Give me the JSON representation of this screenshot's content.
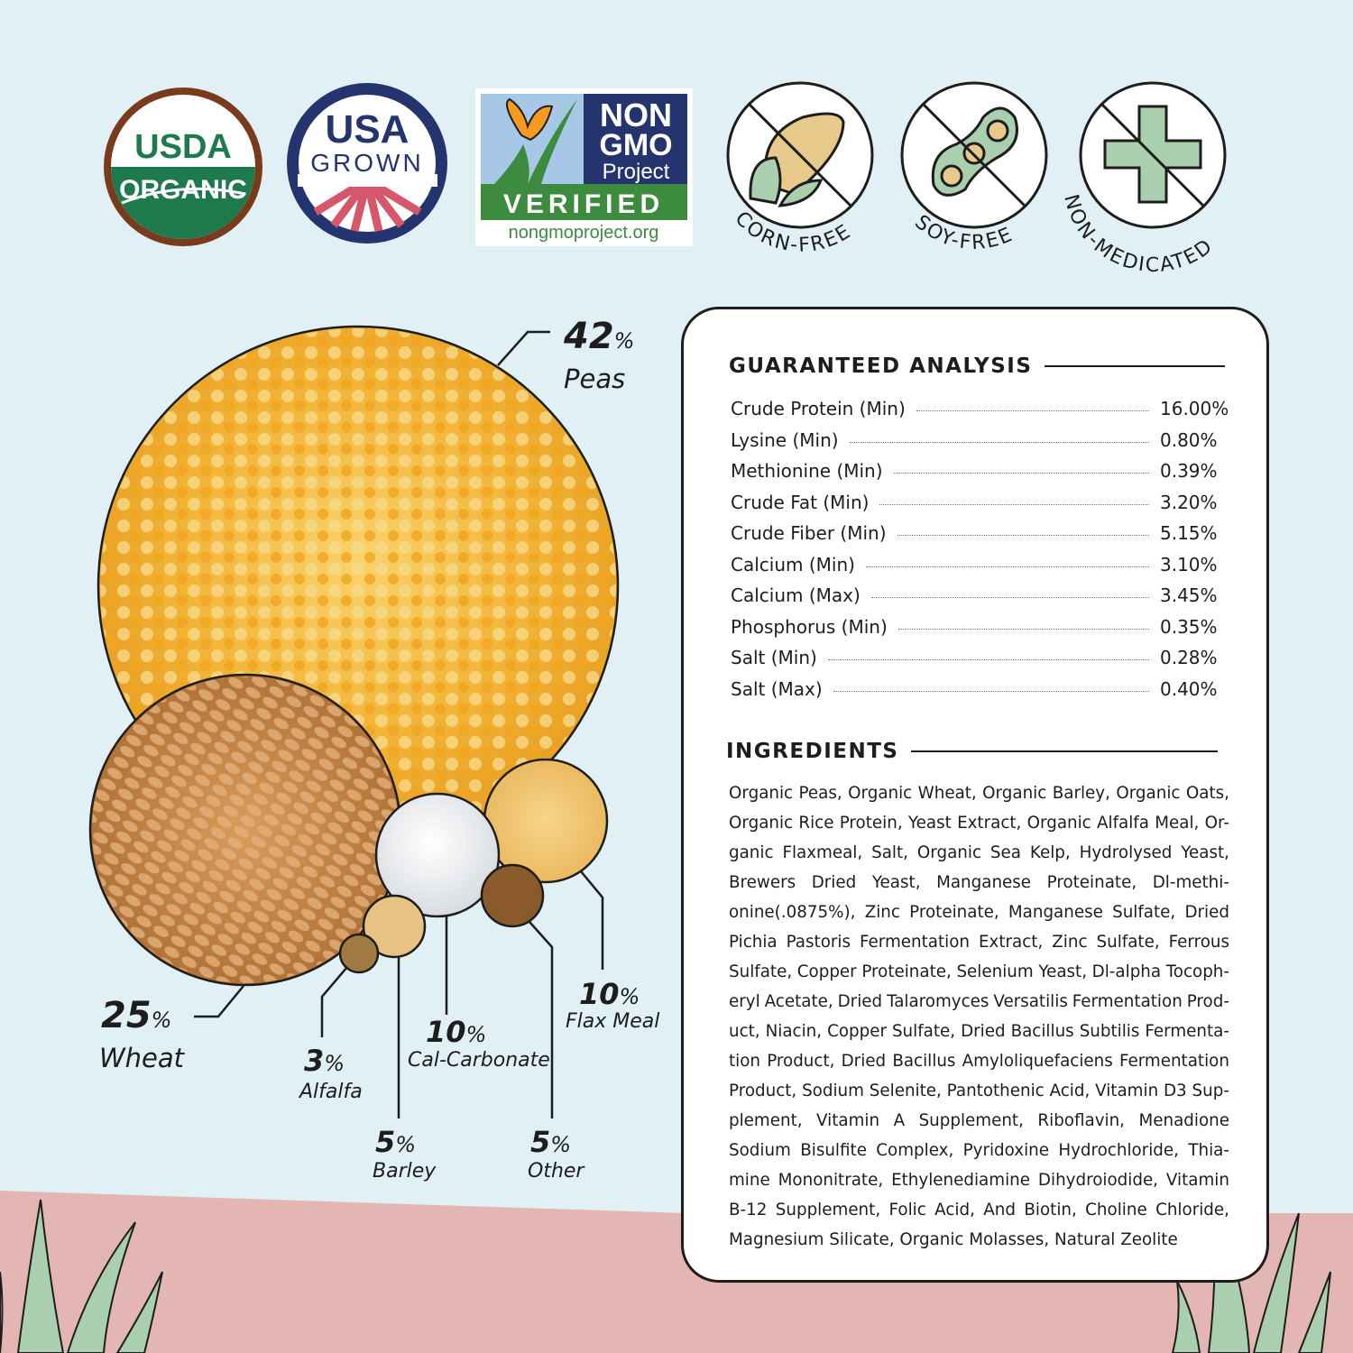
{
  "badges": {
    "usda": {
      "line1": "USDA",
      "line2": "ORGANIC"
    },
    "usa_grown": {
      "line1": "USA",
      "line2": "GROWN"
    },
    "non_gmo": {
      "line1": "NON",
      "line2": "GMO",
      "line3": "Project",
      "verified": "VERIFIED",
      "url": "nongmoproject.org"
    },
    "corn_free": "CORN-FREE",
    "soy_free": "SOY-FREE",
    "non_medicated": "NON-MEDICATED"
  },
  "composition": [
    {
      "pct": "42",
      "unit": "%",
      "name": "Peas"
    },
    {
      "pct": "25",
      "unit": "%",
      "name": "Wheat"
    },
    {
      "pct": "3",
      "unit": "%",
      "name": "Alfalfa"
    },
    {
      "pct": "5",
      "unit": "%",
      "name": "Barley"
    },
    {
      "pct": "10",
      "unit": "%",
      "name": "Cal-Carbonate"
    },
    {
      "pct": "5",
      "unit": "%",
      "name": "Other"
    },
    {
      "pct": "10",
      "unit": "%",
      "name": "Flax Meal"
    }
  ],
  "analysis": {
    "title": "GUARANTEED ANALYSIS",
    "rows": [
      {
        "name": "Crude Protein (Min)",
        "value": "16.00%"
      },
      {
        "name": "Lysine (Min)",
        "value": "0.80%"
      },
      {
        "name": "Methionine (Min)",
        "value": "0.39%"
      },
      {
        "name": "Crude Fat (Min)",
        "value": "3.20%"
      },
      {
        "name": "Crude Fiber (Min)",
        "value": "5.15%"
      },
      {
        "name": "Calcium (Min)",
        "value": "3.10%"
      },
      {
        "name": "Calcium (Max)",
        "value": "3.45%"
      },
      {
        "name": "Phosphorus (Min)",
        "value": "0.35%"
      },
      {
        "name": "Salt (Min)",
        "value": "0.28%"
      },
      {
        "name": "Salt (Max)",
        "value": "0.40%"
      }
    ]
  },
  "ingredients": {
    "title": "INGREDIENTS",
    "lines": [
      "Organic Peas, Organic Wheat, Organic Barley, Organic Oats,",
      "Organic Rice Protein, Yeast Extract, Organic Alfalfa Meal, Or-",
      "ganic Flaxmeal, Salt, Organic Sea Kelp, Hydrolysed Yeast,",
      "Brewers Dried Yeast, Manganese Proteinate, Dl-methi-",
      "onine(.0875%), Zinc Proteinate, Manganese Sulfate, Dried",
      "Pichia Pastoris Fermentation Extract, Zinc Sulfate, Ferrous",
      "Sulfate, Copper Proteinate, Selenium Yeast, Dl-alpha Tocoph-",
      "eryl Acetate, Dried Talaromyces Versatilis Fermentation Prod-",
      "uct, Niacin, Copper Sulfate, Dried Bacillus Subtilis Fermenta-",
      "tion Product, Dried Bacillus Amyloliquefaciens Fermentation",
      "Product, Sodium Selenite, Pantothenic Acid, Vitamin D3 Sup-",
      "plement, Vitamin A Supplement, Riboflavin, Menadione",
      "Sodium Bisulfite Complex, Pyridoxine Hydrochloride, Thia-",
      "mine Mononitrate, Ethylenediamine Dihydroiodide, Vitamin",
      "B-12 Supplement, Folic Acid, And Biotin, Choline Chloride,",
      "Magnesium Silicate, Organic Molasses, Natural Zeolite"
    ]
  },
  "colors": {
    "sky": "#e0f0f5",
    "ground": "#e4b6b3",
    "usda_green": "#1e7a4c",
    "usda_brown": "#7a3b1c",
    "usa_navy": "#24346e",
    "usa_red": "#d6566a",
    "icon_green": "#a9cfae",
    "peas": "#f2b233",
    "wheat": "#c98a48"
  }
}
